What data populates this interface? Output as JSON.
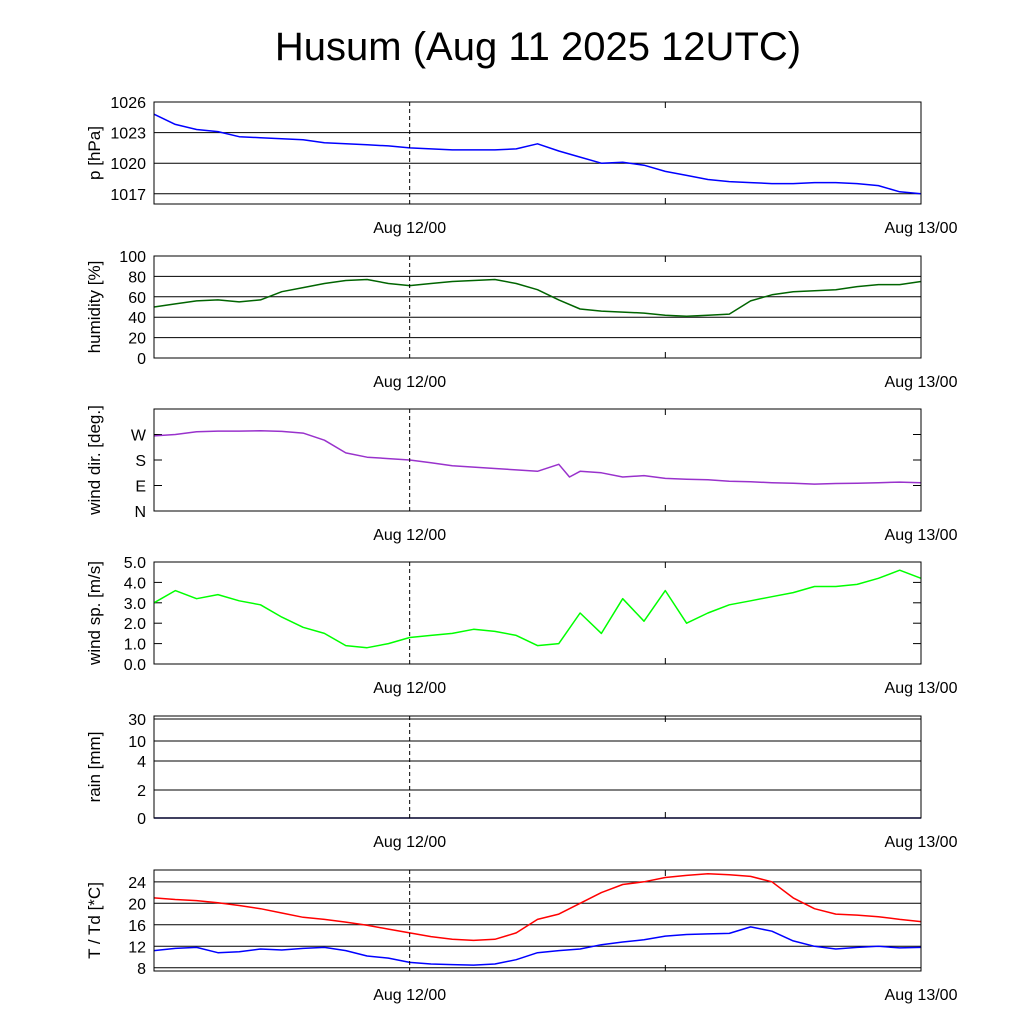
{
  "chart_data": {
    "type": "line",
    "title": "Husum (Aug 11 2025 12UTC)",
    "x_ticks": [
      "Aug 12/00",
      "Aug 13/00"
    ],
    "x_range": [
      "Aug 11 12UTC",
      "Aug 13 00UTC"
    ],
    "panels": [
      {
        "id": "pressure",
        "ylabel": "p [hPa]",
        "ylim": [
          1016,
          1026
        ],
        "yticks": [
          1026,
          1023,
          1020,
          1017
        ],
        "grid": true,
        "series": [
          {
            "color": "#0000ff",
            "x": [
              0,
              1,
              2,
              3,
              4,
              5,
              6,
              7,
              8,
              9,
              10,
              11,
              12,
              13,
              14,
              15,
              16,
              17,
              18,
              19,
              20,
              21,
              22,
              23,
              24,
              25,
              26,
              27,
              28,
              29,
              30,
              31,
              32,
              33,
              34,
              35,
              36
            ],
            "values": [
              1024.8,
              1023.8,
              1023.3,
              1023.1,
              1022.6,
              1022.5,
              1022.4,
              1022.3,
              1022.0,
              1021.9,
              1021.8,
              1021.7,
              1021.5,
              1021.4,
              1021.3,
              1021.3,
              1021.3,
              1021.4,
              1021.9,
              1021.2,
              1020.6,
              1020.0,
              1020.1,
              1019.8,
              1019.2,
              1018.8,
              1018.4,
              1018.2,
              1018.1,
              1018.0,
              1018.0,
              1018.1,
              1018.1,
              1018.0,
              1017.8,
              1017.2,
              1017.0
            ]
          }
        ]
      },
      {
        "id": "humidity",
        "ylabel": "humidity [%]",
        "ylim": [
          0,
          100
        ],
        "yticks": [
          100,
          80,
          60,
          40,
          20,
          0
        ],
        "grid": true,
        "series": [
          {
            "color": "#006400",
            "x": [
              0,
              1,
              2,
              3,
              4,
              5,
              6,
              7,
              8,
              9,
              10,
              11,
              12,
              13,
              14,
              15,
              16,
              17,
              18,
              19,
              20,
              21,
              22,
              23,
              24,
              25,
              26,
              27,
              28,
              29,
              30,
              31,
              32,
              33,
              34,
              35,
              36
            ],
            "values": [
              50,
              53,
              56,
              57,
              55,
              57,
              65,
              69,
              73,
              76,
              77,
              73,
              71,
              73,
              75,
              76,
              77,
              73,
              67,
              57,
              48,
              46,
              45,
              44,
              42,
              41,
              42,
              43,
              56,
              62,
              65,
              66,
              67,
              70,
              72,
              72,
              75
            ]
          }
        ]
      },
      {
        "id": "wind_direction",
        "ylabel": "wind dir. [deg.]",
        "ylim": [
          0,
          360
        ],
        "yticks": [
          "W",
          "S",
          "E",
          "N"
        ],
        "ytick_values": [
          270,
          180,
          90,
          0
        ],
        "grid": false,
        "series": [
          {
            "color": "#9932cc",
            "x": [
              0,
              1,
              2,
              3,
              4,
              5,
              6,
              7,
              8,
              9,
              10,
              11,
              12,
              13,
              14,
              15,
              16,
              17,
              18,
              19,
              19.5,
              20,
              21,
              22,
              23,
              24,
              25,
              26,
              27,
              28,
              29,
              30,
              31,
              32,
              33,
              34,
              35,
              36
            ],
            "values": [
              265,
              270,
              280,
              282,
              282,
              283,
              281,
              275,
              250,
              205,
              190,
              185,
              180,
              170,
              160,
              155,
              150,
              145,
              140,
              165,
              120,
              140,
              135,
              120,
              125,
              115,
              112,
              110,
              105,
              103,
              100,
              98,
              95,
              97,
              98,
              100,
              102,
              100
            ]
          }
        ]
      },
      {
        "id": "wind_speed",
        "ylabel": "wind sp. [m/s]",
        "ylim": [
          0,
          5
        ],
        "yticks": [
          "5.0",
          "4.0",
          "3.0",
          "2.0",
          "1.0",
          "0.0"
        ],
        "ytick_values": [
          5,
          4,
          3,
          2,
          1,
          0
        ],
        "grid": false,
        "series": [
          {
            "color": "#00ff00",
            "x": [
              0,
              1,
              2,
              3,
              4,
              5,
              6,
              7,
              8,
              9,
              10,
              11,
              12,
              13,
              14,
              15,
              16,
              17,
              18,
              19,
              20,
              21,
              22,
              23,
              24,
              25,
              26,
              27,
              28,
              29,
              30,
              31,
              32,
              33,
              34,
              35,
              36
            ],
            "values": [
              3.0,
              3.6,
              3.2,
              3.4,
              3.1,
              2.9,
              2.3,
              1.8,
              1.5,
              0.9,
              0.8,
              1.0,
              1.3,
              1.4,
              1.5,
              1.7,
              1.6,
              1.4,
              0.9,
              1.0,
              2.5,
              1.5,
              3.2,
              2.1,
              3.6,
              2.0,
              2.5,
              2.9,
              3.1,
              3.3,
              3.5,
              3.8,
              3.8,
              3.9,
              4.2,
              4.6,
              4.2
            ]
          }
        ]
      },
      {
        "id": "rain",
        "ylabel": "rain [mm]",
        "yticks": [
          "30",
          "10",
          "4",
          "2",
          "0"
        ],
        "ytick_values": [
          30,
          10,
          4,
          2,
          0
        ],
        "scale": "nonlinear",
        "grid": true,
        "series": [
          {
            "color": "#000080",
            "x": [
              0,
              36
            ],
            "values": [
              0,
              0
            ]
          }
        ]
      },
      {
        "id": "temperature",
        "ylabel": "T / Td [*C]",
        "ylim": [
          7.4,
          26.2
        ],
        "yticks": [
          24,
          20,
          16,
          12,
          8
        ],
        "grid": true,
        "series": [
          {
            "color": "#ff0000",
            "x": [
              0,
              1,
              2,
              3,
              4,
              5,
              6,
              7,
              8,
              9,
              10,
              11,
              12,
              13,
              14,
              15,
              16,
              17,
              18,
              19,
              20,
              21,
              22,
              23,
              24,
              25,
              26,
              27,
              28,
              29,
              30,
              31,
              32,
              33,
              34,
              35,
              36
            ],
            "values": [
              21.0,
              20.7,
              20.5,
              20.1,
              19.6,
              19.0,
              18.2,
              17.4,
              17.0,
              16.5,
              15.9,
              15.2,
              14.5,
              13.8,
              13.3,
              13.1,
              13.3,
              14.5,
              17.0,
              18.0,
              20.0,
              22.0,
              23.5,
              24.0,
              24.8,
              25.2,
              25.5,
              25.3,
              25.0,
              24.0,
              21.0,
              19.0,
              18.0,
              17.8,
              17.5,
              17.0,
              16.6
            ]
          },
          {
            "color": "#0000ff",
            "x": [
              0,
              1,
              2,
              3,
              4,
              5,
              6,
              7,
              8,
              9,
              10,
              11,
              12,
              13,
              14,
              15,
              16,
              17,
              18,
              19,
              20,
              21,
              22,
              23,
              24,
              25,
              26,
              27,
              28,
              29,
              30,
              31,
              32,
              33,
              34,
              35,
              36
            ],
            "values": [
              11.2,
              11.6,
              11.8,
              10.8,
              11.0,
              11.5,
              11.3,
              11.6,
              11.8,
              11.2,
              10.2,
              9.8,
              9.0,
              8.7,
              8.6,
              8.5,
              8.7,
              9.5,
              10.8,
              11.2,
              11.5,
              12.3,
              12.8,
              13.2,
              13.9,
              14.2,
              14.3,
              14.4,
              15.6,
              14.8,
              13.0,
              12.0,
              11.5,
              11.8,
              12.0,
              11.7,
              11.8
            ]
          }
        ]
      }
    ]
  }
}
